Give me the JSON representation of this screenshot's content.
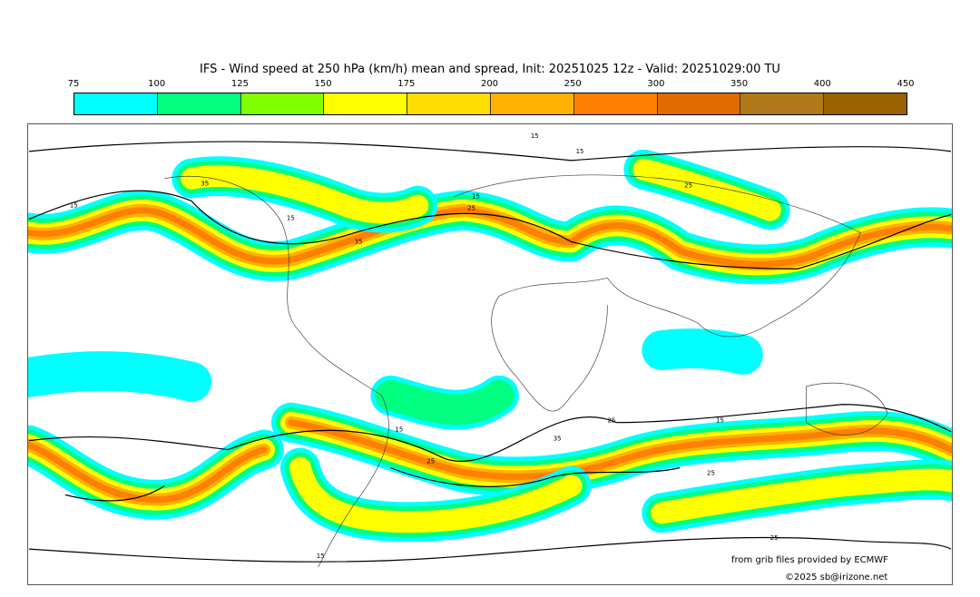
{
  "title": "IFS - Wind speed at 250 hPa (km/h) mean and spread, Init: 20251025 12z - Valid: 20251029:00 TU",
  "colorbar": {
    "ticks": [
      "75",
      "100",
      "125",
      "150",
      "175",
      "200",
      "250",
      "300",
      "350",
      "400",
      "450"
    ],
    "colors": [
      "#00ffff",
      "#00ff80",
      "#80ff00",
      "#ffff00",
      "#ffdd00",
      "#ffb000",
      "#ff8000",
      "#e06c00",
      "#b07818",
      "#9b6300"
    ]
  },
  "contour_labels": [
    "15",
    "15",
    "15",
    "25",
    "35",
    "35",
    "15",
    "25",
    "15",
    "25",
    "25",
    "35",
    "25",
    "15",
    "25",
    "15",
    "15"
  ],
  "credits": {
    "source": "from grib files provided by ECMWF",
    "copyright": "©2025 sb@irizone.net"
  }
}
